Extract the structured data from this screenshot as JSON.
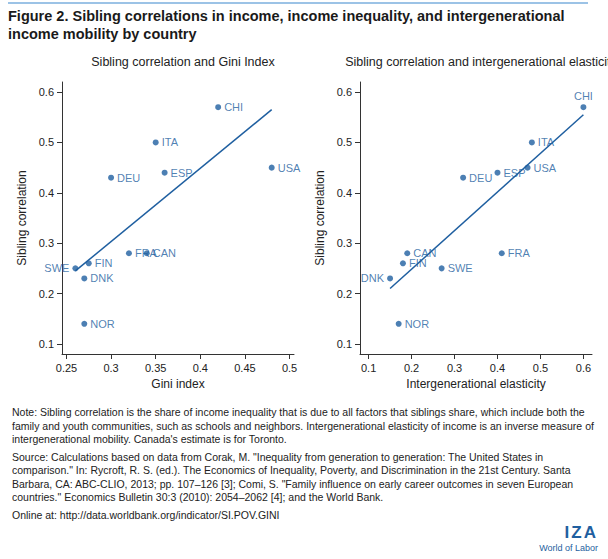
{
  "header": {
    "title": "Figure 2. Sibling correlations in income, income inequality, and intergenerational income mobility by country"
  },
  "chart_data": [
    {
      "type": "scatter",
      "title": "Sibling correlation and Gini Index",
      "x_label": "Gini index",
      "y_label": "Sibling correlation",
      "xlim": [
        0.245,
        0.505
      ],
      "xticks": [
        0.25,
        0.3,
        0.35,
        0.4,
        0.45,
        0.5
      ],
      "ylim": [
        0.08,
        0.62
      ],
      "yticks": [
        0.1,
        0.2,
        0.3,
        0.4,
        0.5,
        0.6
      ],
      "grid": false,
      "color": "#1f5fa0",
      "point_labels": [
        "SWE",
        "FIN",
        "DNK",
        "NOR",
        "DEU",
        "FRA",
        "CAN",
        "ITA",
        "ESP",
        "CHI",
        "USA"
      ],
      "x": [
        0.26,
        0.275,
        0.27,
        0.27,
        0.3,
        0.32,
        0.34,
        0.35,
        0.36,
        0.42,
        0.48
      ],
      "values": [
        0.25,
        0.26,
        0.23,
        0.14,
        0.43,
        0.28,
        0.28,
        0.5,
        0.44,
        0.57,
        0.45
      ],
      "trend": {
        "x": [
          0.26,
          0.48
        ],
        "values": [
          0.245,
          0.565
        ]
      }
    },
    {
      "type": "scatter",
      "title": "Sibling correlation and intergenerational elasticity",
      "x_label": "Intergenerational elasticity",
      "y_label": "Sibling correlation",
      "xlim": [
        0.08,
        0.62
      ],
      "xticks": [
        0.1,
        0.2,
        0.3,
        0.4,
        0.5,
        0.6
      ],
      "ylim": [
        0.08,
        0.62
      ],
      "yticks": [
        0.1,
        0.2,
        0.3,
        0.4,
        0.5,
        0.6
      ],
      "grid": false,
      "color": "#1f5fa0",
      "point_labels": [
        "CHI",
        "ITA",
        "ESP",
        "USA",
        "DEU",
        "CAN",
        "FIN",
        "DNK",
        "SWE",
        "FRA",
        "NOR"
      ],
      "x": [
        0.6,
        0.48,
        0.4,
        0.47,
        0.32,
        0.19,
        0.18,
        0.15,
        0.27,
        0.41,
        0.17
      ],
      "values": [
        0.57,
        0.5,
        0.44,
        0.45,
        0.43,
        0.28,
        0.26,
        0.23,
        0.25,
        0.28,
        0.14
      ],
      "trend": {
        "x": [
          0.15,
          0.6
        ],
        "values": [
          0.21,
          0.555
        ]
      }
    }
  ],
  "footer": {
    "note": "Note: Sibling correlation is the share of income inequality that is due to all factors that siblings share, which include both the family and youth communities, such as schools and neighbors. Intergenerational elasticity of income is an inverse measure of intergenerational mobility. Canada's estimate is for Toronto.",
    "source": "Source: Calculations based on data from Corak, M. \"Inequality from generation to generation: The United States in comparison.\" In: Rycroft, R. S. (ed.). The Economics of Inequality, Poverty, and Discrimination in the 21st Century. Santa Barbara, CA: ABC-CLIO, 2013; pp. 107–126 [3]; Comi, S. \"Family influence on early career outcomes in seven European countries.\" Economics Bulletin 30:3 (2010): 2054–2062 [4]; and the World Bank.",
    "online": "Online at: http://data.worldbank.org/indicator/SI.POV.GINI",
    "logo": [
      "IZA",
      "World of Labor"
    ]
  }
}
